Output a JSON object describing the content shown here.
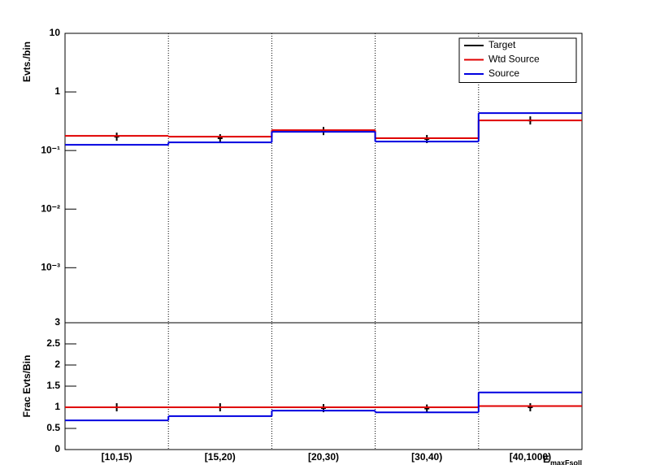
{
  "chart_data": [
    {
      "type": "step",
      "y_label": "Evts./bin",
      "log_y": true,
      "ylim": [
        0.000115,
        10
      ],
      "yticks": [
        {
          "value": 10,
          "label": "10"
        },
        {
          "value": 1,
          "label": "1"
        },
        {
          "value": 0.1,
          "label": "10⁻¹"
        },
        {
          "value": 0.01,
          "label": "10⁻²"
        },
        {
          "value": 0.001,
          "label": "10⁻³"
        }
      ],
      "legend": "top-right",
      "series": [
        {
          "name": "Target",
          "color": "#000000",
          "style": "points",
          "values": [
            0.172,
            0.162,
            0.215,
            0.157,
            0.326
          ]
        },
        {
          "name": "Wtd Source",
          "color": "#e00000",
          "style": "step",
          "values": [
            0.178,
            0.172,
            0.222,
            0.162,
            0.326
          ]
        },
        {
          "name": "Source",
          "color": "#0000e0",
          "style": "step",
          "values": [
            0.125,
            0.138,
            0.209,
            0.142,
            0.435
          ]
        }
      ]
    },
    {
      "type": "step",
      "y_label": "Frac Evts/Bin",
      "x_label": "E",
      "x_label_sub": "maxFsoll",
      "categories": [
        "[10,15)",
        "[15,20)",
        "[20,30)",
        "[30,40)",
        "[40,1000)"
      ],
      "ylim": [
        0,
        3
      ],
      "yticks": [
        0,
        0.5,
        1,
        1.5,
        2,
        2.5,
        3
      ],
      "series": [
        {
          "color": "#000000",
          "style": "points",
          "values": [
            1.0,
            1.0,
            0.98,
            0.97,
            1.0
          ]
        },
        {
          "color": "#e00000",
          "style": "step",
          "values": [
            1.0,
            1.0,
            1.0,
            1.0,
            1.03
          ]
        },
        {
          "color": "#0000e0",
          "style": "step",
          "values": [
            0.69,
            0.79,
            0.92,
            0.88,
            1.35
          ]
        }
      ]
    }
  ]
}
